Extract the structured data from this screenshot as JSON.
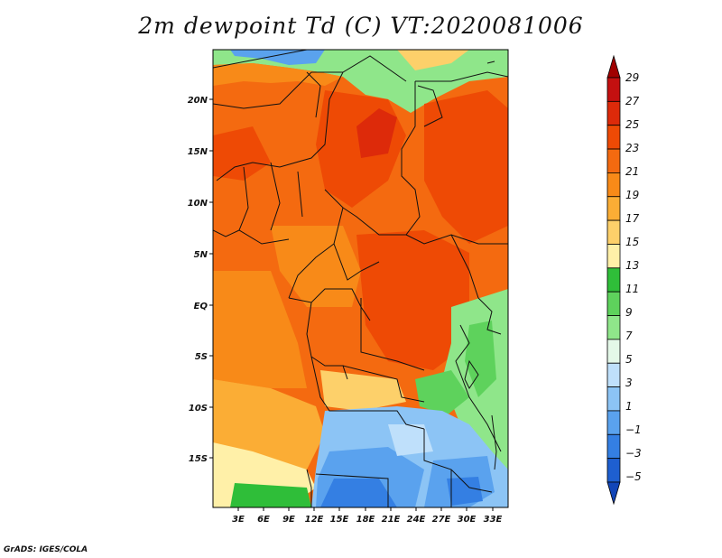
{
  "title": "2m dewpoint Td (C) VT:2020081006",
  "credit": "GrADS: IGES/COLA",
  "map": {
    "lon_ticks": [
      "3E",
      "6E",
      "9E",
      "12E",
      "15E",
      "18E",
      "21E",
      "24E",
      "27E",
      "30E",
      "33E"
    ],
    "lat_ticks": [
      "20N",
      "15N",
      "10N",
      "5N",
      "EQ",
      "5S",
      "10S",
      "15S"
    ]
  },
  "colorbar": {
    "labels": [
      "29",
      "27",
      "25",
      "23",
      "21",
      "19",
      "17",
      "15",
      "13",
      "11",
      "9",
      "7",
      "5",
      "3",
      "1",
      "−1",
      "−3",
      "−5"
    ],
    "colors": [
      "#a00000",
      "#c41010",
      "#dd2a0a",
      "#ee4a05",
      "#f46a10",
      "#f88a18",
      "#fbad35",
      "#fdd06a",
      "#fff0a8",
      "#2fbe39",
      "#5ed25c",
      "#8fe68a",
      "#e4f8e8",
      "#bfe0fb",
      "#8cc4f5",
      "#5aa2ee",
      "#347fe3",
      "#1e5fd0",
      "#1246b8"
    ]
  }
}
